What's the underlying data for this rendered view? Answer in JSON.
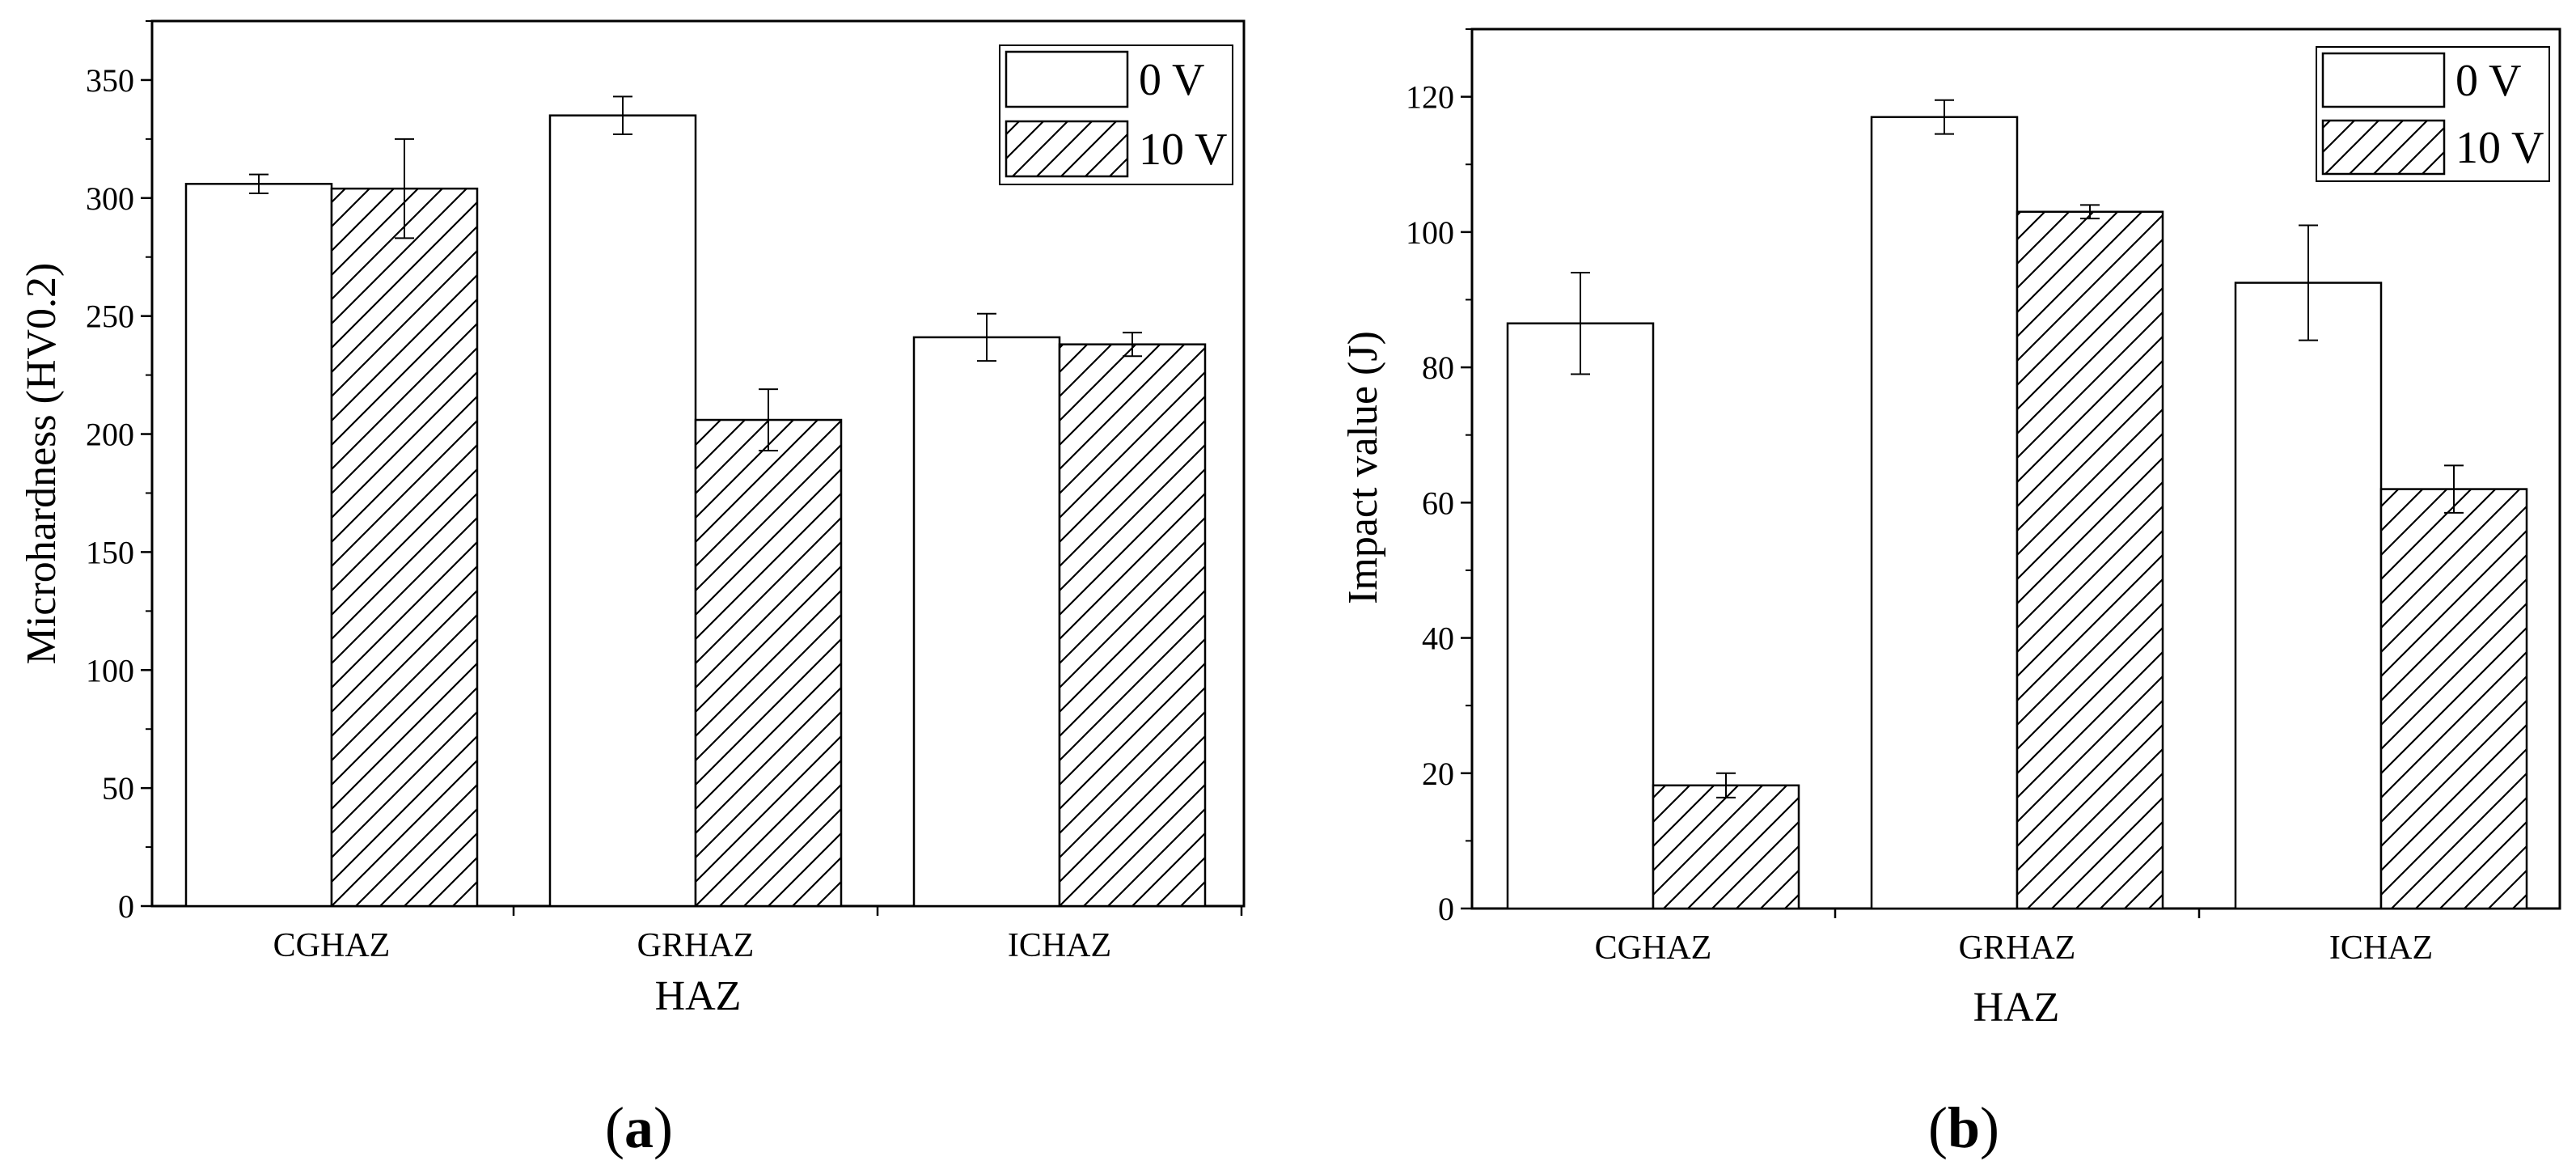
{
  "chart_data": [
    {
      "type": "bar",
      "panel_label": {
        "open": "(",
        "letter": "a",
        "close": ")"
      },
      "categories": [
        "CGHAZ",
        "GRHAZ",
        "ICHAZ"
      ],
      "series": [
        {
          "name": "0 V",
          "values": [
            306,
            335,
            241
          ],
          "errors": [
            4,
            8,
            10
          ],
          "pattern": "solid-white"
        },
        {
          "name": "10 V",
          "values": [
            304,
            206,
            238
          ],
          "errors": [
            21,
            13,
            5
          ],
          "pattern": "diagonal-hatch"
        }
      ],
      "xlabel": "HAZ",
      "ylabel": "Microhardness (HV0.2)",
      "ylim": [
        0,
        375
      ],
      "yticks": [
        "0",
        "50",
        "100",
        "150",
        "200",
        "250",
        "300",
        "350"
      ],
      "legend_position": "top-right",
      "grid": false
    },
    {
      "type": "bar",
      "panel_label": {
        "open": "(",
        "letter": "b",
        "close": ")"
      },
      "categories": [
        "CGHAZ",
        "GRHAZ",
        "ICHAZ"
      ],
      "series": [
        {
          "name": "0 V",
          "values": [
            86.5,
            117,
            92.5
          ],
          "errors": [
            7.5,
            2.5,
            8.5
          ],
          "pattern": "solid-white"
        },
        {
          "name": "10 V",
          "values": [
            18.2,
            103,
            62
          ],
          "errors": [
            1.8,
            1,
            3.5
          ],
          "pattern": "diagonal-hatch"
        }
      ],
      "xlabel": "HAZ",
      "ylabel": "Impact value (J)",
      "ylim": [
        0,
        130
      ],
      "yticks": [
        "0",
        "20",
        "40",
        "60",
        "80",
        "100",
        "120"
      ],
      "legend_position": "top-right",
      "grid": false
    }
  ]
}
